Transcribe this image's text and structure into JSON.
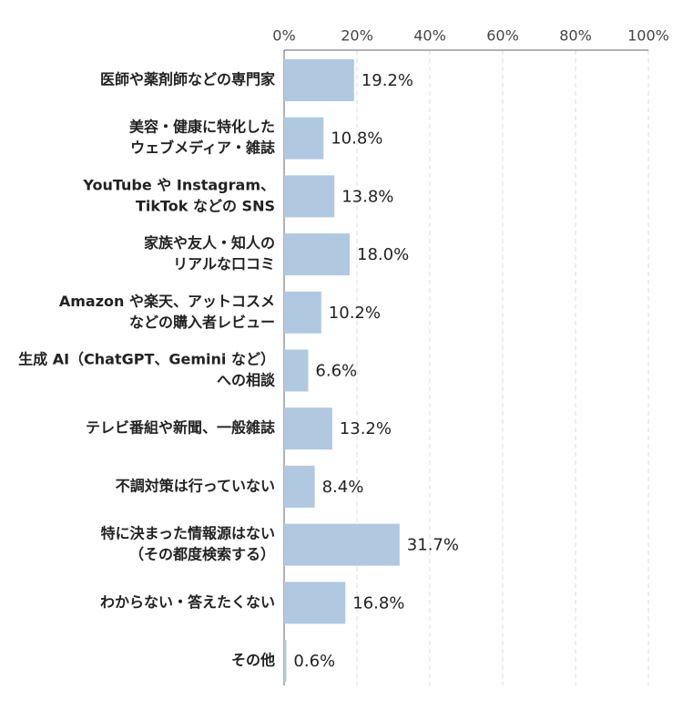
{
  "chart_data": {
    "type": "bar",
    "orientation": "horizontal",
    "categories": [
      [
        "医師や薬剤師などの専門家"
      ],
      [
        "美容・健康に特化した",
        "ウェブメディア・雑誌"
      ],
      [
        "YouTube や Instagram、",
        "TikTok などの SNS"
      ],
      [
        "家族や友人・知人の",
        "リアルな口コミ"
      ],
      [
        "Amazon や楽天、アットコスメ",
        "などの購入者レビュー"
      ],
      [
        "生成 AI（ChatGPT、Gemini など）",
        "への相談"
      ],
      [
        "テレビ番組や新聞、一般雑誌"
      ],
      [
        "不調対策は行っていない"
      ],
      [
        "特に決まった情報源はない",
        "（その都度検索する）"
      ],
      [
        "わからない・答えたくない"
      ],
      [
        "その他"
      ]
    ],
    "values": [
      19.2,
      10.8,
      13.8,
      18.0,
      10.2,
      6.6,
      13.2,
      8.4,
      31.7,
      16.8,
      0.6
    ],
    "value_labels": [
      "19.2%",
      "10.8%",
      "13.8%",
      "18.0%",
      "10.2%",
      "6.6%",
      "13.2%",
      "8.4%",
      "31.7%",
      "16.8%",
      "0.6%"
    ],
    "color": "#b0c9e1",
    "xlim": [
      0,
      100
    ],
    "xticks": [
      {
        "value": 0,
        "label": "0%"
      },
      {
        "value": 20,
        "label": "20%"
      },
      {
        "value": 40,
        "label": "40%"
      },
      {
        "value": 60,
        "label": "60%"
      },
      {
        "value": 80,
        "label": "80%"
      },
      {
        "value": 100,
        "label": "100%"
      }
    ],
    "grid": true
  }
}
